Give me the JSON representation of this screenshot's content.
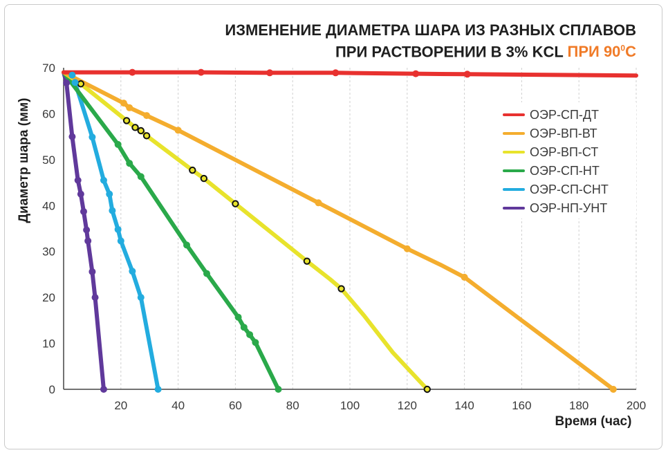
{
  "title": {
    "line1": "ИЗМЕНЕНИЕ ДИАМЕТРА ШАРА ИЗ РАЗНЫХ СПЛАВОВ",
    "line2_main": "ПРИ РАСТВОРЕНИИ В 3% KCL ",
    "line2_accent": "ПРИ 90",
    "line2_sup": "0",
    "line2_unit": "С"
  },
  "chart_data": {
    "type": "line",
    "title": "ИЗМЕНЕНИЕ ДИАМЕТРА ШАРА ИЗ РАЗНЫХ СПЛАВОВ ПРИ РАСТВОРЕНИИ В 3% KCL ПРИ 90°С",
    "xlabel": "Время (час)",
    "ylabel": "Диаметр шара (мм)",
    "xlim": [
      0,
      200
    ],
    "ylim": [
      0,
      70
    ],
    "xticks": [
      "20",
      "40",
      "60",
      "80",
      "100",
      "120",
      "140",
      "160",
      "180",
      "200"
    ],
    "yticks": [
      "0",
      "10",
      "20",
      "30",
      "40",
      "50",
      "60",
      "70"
    ],
    "grid": "vertical dashed",
    "legend_position": "right",
    "series": [
      {
        "name": "ОЭР-СП-ДТ",
        "color": "#e8312f",
        "marker": "filled",
        "points": [
          [
            0,
            69
          ],
          [
            24,
            69
          ],
          [
            48,
            69
          ],
          [
            72,
            68.9
          ],
          [
            95,
            68.9
          ],
          [
            123,
            68.7
          ],
          [
            141,
            68.6
          ],
          [
            200,
            68.3
          ]
        ],
        "marked": [
          24,
          48,
          72,
          95,
          123,
          141
        ]
      },
      {
        "name": "ОЭР-ВП-ВТ",
        "color": "#f4ad2e",
        "marker": "filled",
        "points": [
          [
            0,
            69
          ],
          [
            21,
            62.3
          ],
          [
            23,
            61.3
          ],
          [
            29,
            59.6
          ],
          [
            40,
            56.4
          ],
          [
            89,
            40.6
          ],
          [
            120,
            30.6
          ],
          [
            132,
            27
          ],
          [
            140,
            24.4
          ],
          [
            160,
            15
          ],
          [
            175,
            8
          ],
          [
            192,
            0
          ]
        ],
        "marked": [
          21,
          23,
          29,
          40,
          89,
          120,
          140,
          192
        ]
      },
      {
        "name": "ОЭР-ВП-СТ",
        "color": "#e8e32c",
        "marker": "open",
        "points": [
          [
            0,
            69
          ],
          [
            6,
            66.5
          ],
          [
            22,
            58.5
          ],
          [
            25,
            57
          ],
          [
            27,
            56.3
          ],
          [
            29,
            55.2
          ],
          [
            45,
            47.7
          ],
          [
            49,
            45.9
          ],
          [
            60,
            40.4
          ],
          [
            85,
            27.9
          ],
          [
            93,
            24
          ],
          [
            97,
            21.9
          ],
          [
            105,
            16
          ],
          [
            115,
            8
          ],
          [
            127,
            0
          ]
        ],
        "marked": [
          6,
          22,
          25,
          27,
          29,
          45,
          49,
          60,
          85,
          97,
          127
        ]
      },
      {
        "name": "ОЭР-СП-НТ",
        "color": "#2aa94a",
        "marker": "filled",
        "points": [
          [
            0,
            69
          ],
          [
            19,
            53.3
          ],
          [
            23,
            49.2
          ],
          [
            27,
            46.3
          ],
          [
            43,
            31.4
          ],
          [
            50,
            25.2
          ],
          [
            61,
            15.7
          ],
          [
            63,
            13.5
          ],
          [
            65,
            11.9
          ],
          [
            67,
            10.2
          ],
          [
            75,
            0
          ]
        ],
        "marked": [
          19,
          23,
          27,
          43,
          50,
          61,
          63,
          65,
          67,
          75
        ]
      },
      {
        "name": "ОЭР-СП-СНТ",
        "color": "#23acdf",
        "marker": "filled",
        "points": [
          [
            0,
            69
          ],
          [
            3,
            68.4
          ],
          [
            4,
            66.8
          ],
          [
            10,
            54.9
          ],
          [
            14,
            45.5
          ],
          [
            16,
            42.5
          ],
          [
            17,
            38.9
          ],
          [
            19,
            34.8
          ],
          [
            20,
            32.3
          ],
          [
            24,
            25.7
          ],
          [
            27,
            20
          ],
          [
            33,
            0
          ]
        ],
        "marked": [
          3,
          4,
          10,
          14,
          16,
          17,
          19,
          20,
          24,
          27,
          33
        ]
      },
      {
        "name": "ОЭР-НП-УНТ",
        "color": "#60399b",
        "marker": "filled",
        "points": [
          [
            0,
            69
          ],
          [
            1,
            66.7
          ],
          [
            3,
            55
          ],
          [
            5,
            45.5
          ],
          [
            6,
            42.5
          ],
          [
            7,
            38.7
          ],
          [
            8,
            34.7
          ],
          [
            8.5,
            32.3
          ],
          [
            10,
            25.6
          ],
          [
            11,
            20
          ],
          [
            14,
            0
          ]
        ],
        "marked": [
          1,
          3,
          5,
          6,
          7,
          8,
          8.5,
          10,
          11,
          14
        ]
      }
    ]
  }
}
